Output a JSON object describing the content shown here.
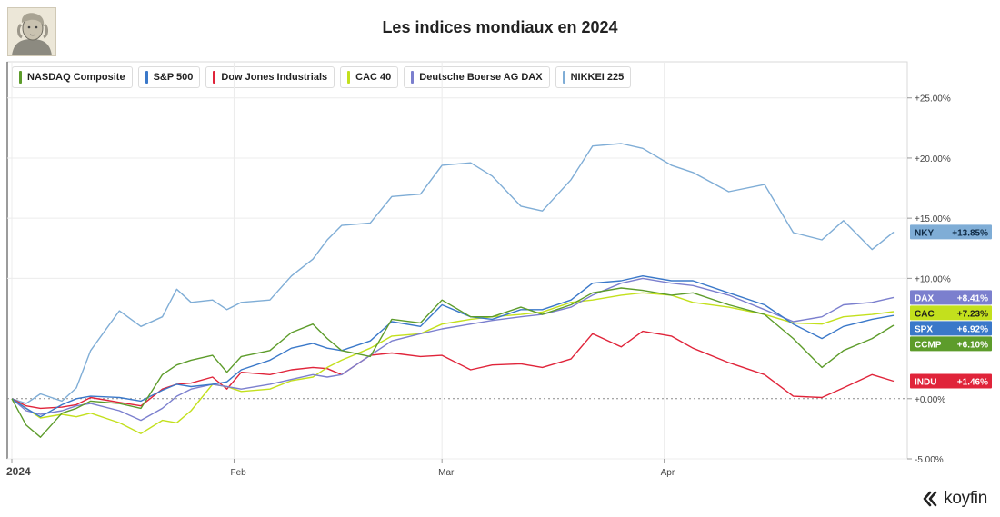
{
  "header": {
    "title": "Les indices mondiaux en 2024",
    "avatar_icon": "portrait-engraving-icon"
  },
  "brand": {
    "name": "koyfin",
    "icon": "koyfin-logo-icon"
  },
  "chart_data": {
    "type": "line",
    "title": "Les indices mondiaux en 2024",
    "ylim": [
      -5,
      28
    ],
    "grid": true,
    "legend": "top-left",
    "y_ticks": [
      {
        "value": 25,
        "label": "+25.00%"
      },
      {
        "value": 20,
        "label": "+20.00%"
      },
      {
        "value": 15,
        "label": "+15.00%"
      },
      {
        "value": 10,
        "label": "+10.00%"
      },
      {
        "value": 0,
        "label": "+0.00%"
      },
      {
        "value": -5,
        "label": "-5.00%"
      }
    ],
    "x_ticks": [
      {
        "date": "2024-01-01",
        "label": "2024"
      },
      {
        "date": "2024-02-01",
        "label": "Feb"
      },
      {
        "date": "2024-03-01",
        "label": "Mar"
      },
      {
        "date": "2024-04-01",
        "label": "Apr"
      }
    ],
    "series": [
      {
        "name": "NASDAQ Composite",
        "ticker": "CCMP",
        "last": 6.1,
        "last_label": "+6.10%",
        "color": "#5d9c2b",
        "points": [
          [
            "2024-01-01",
            0
          ],
          [
            "2024-01-03",
            -2.2
          ],
          [
            "2024-01-05",
            -3.2
          ],
          [
            "2024-01-08",
            -1.2
          ],
          [
            "2024-01-10",
            -0.8
          ],
          [
            "2024-01-12",
            -0.2
          ],
          [
            "2024-01-16",
            -0.4
          ],
          [
            "2024-01-19",
            -0.8
          ],
          [
            "2024-01-22",
            2.0
          ],
          [
            "2024-01-24",
            2.8
          ],
          [
            "2024-01-26",
            3.2
          ],
          [
            "2024-01-29",
            3.6
          ],
          [
            "2024-01-31",
            2.2
          ],
          [
            "2024-02-02",
            3.5
          ],
          [
            "2024-02-06",
            4.0
          ],
          [
            "2024-02-09",
            5.5
          ],
          [
            "2024-02-12",
            6.2
          ],
          [
            "2024-02-14",
            5.0
          ],
          [
            "2024-02-16",
            4.0
          ],
          [
            "2024-02-20",
            3.5
          ],
          [
            "2024-02-23",
            6.6
          ],
          [
            "2024-02-27",
            6.3
          ],
          [
            "2024-03-01",
            8.2
          ],
          [
            "2024-03-05",
            6.8
          ],
          [
            "2024-03-08",
            6.8
          ],
          [
            "2024-03-12",
            7.6
          ],
          [
            "2024-03-15",
            7.0
          ],
          [
            "2024-03-19",
            7.8
          ],
          [
            "2024-03-22",
            8.8
          ],
          [
            "2024-03-26",
            9.2
          ],
          [
            "2024-03-29",
            9.0
          ],
          [
            "2024-04-02",
            8.6
          ],
          [
            "2024-04-05",
            8.8
          ],
          [
            "2024-04-10",
            7.8
          ],
          [
            "2024-04-15",
            7.0
          ],
          [
            "2024-04-19",
            5.0
          ],
          [
            "2024-04-23",
            2.6
          ],
          [
            "2024-04-26",
            4.0
          ],
          [
            "2024-04-30",
            5.0
          ],
          [
            "2024-05-03",
            6.1
          ]
        ]
      },
      {
        "name": "S&P 500",
        "ticker": "SPX",
        "last": 6.92,
        "last_label": "+6.92%",
        "color": "#3a78c9",
        "points": [
          [
            "2024-01-01",
            0
          ],
          [
            "2024-01-03",
            -0.8
          ],
          [
            "2024-01-05",
            -1.5
          ],
          [
            "2024-01-08",
            -0.5
          ],
          [
            "2024-01-10",
            0.0
          ],
          [
            "2024-01-12",
            0.2
          ],
          [
            "2024-01-16",
            0.1
          ],
          [
            "2024-01-19",
            -0.2
          ],
          [
            "2024-01-22",
            0.7
          ],
          [
            "2024-01-24",
            1.2
          ],
          [
            "2024-01-26",
            1.0
          ],
          [
            "2024-01-29",
            1.2
          ],
          [
            "2024-01-31",
            1.4
          ],
          [
            "2024-02-02",
            2.4
          ],
          [
            "2024-02-06",
            3.2
          ],
          [
            "2024-02-09",
            4.2
          ],
          [
            "2024-02-12",
            4.6
          ],
          [
            "2024-02-14",
            4.2
          ],
          [
            "2024-02-16",
            4.0
          ],
          [
            "2024-02-20",
            4.8
          ],
          [
            "2024-02-23",
            6.4
          ],
          [
            "2024-02-27",
            6.0
          ],
          [
            "2024-03-01",
            7.8
          ],
          [
            "2024-03-05",
            6.8
          ],
          [
            "2024-03-08",
            6.6
          ],
          [
            "2024-03-12",
            7.4
          ],
          [
            "2024-03-15",
            7.4
          ],
          [
            "2024-03-19",
            8.2
          ],
          [
            "2024-03-22",
            9.6
          ],
          [
            "2024-03-26",
            9.8
          ],
          [
            "2024-03-29",
            10.2
          ],
          [
            "2024-04-02",
            9.8
          ],
          [
            "2024-04-05",
            9.8
          ],
          [
            "2024-04-10",
            8.8
          ],
          [
            "2024-04-15",
            7.8
          ],
          [
            "2024-04-19",
            6.2
          ],
          [
            "2024-04-23",
            5.0
          ],
          [
            "2024-04-26",
            6.0
          ],
          [
            "2024-04-30",
            6.6
          ],
          [
            "2024-05-03",
            6.92
          ]
        ]
      },
      {
        "name": "Dow Jones Industrials",
        "ticker": "INDU",
        "last": 1.46,
        "last_label": "+1.46%",
        "color": "#e0243a",
        "points": [
          [
            "2024-01-01",
            0
          ],
          [
            "2024-01-03",
            -0.6
          ],
          [
            "2024-01-05",
            -0.8
          ],
          [
            "2024-01-08",
            -0.7
          ],
          [
            "2024-01-10",
            -0.5
          ],
          [
            "2024-01-12",
            0.1
          ],
          [
            "2024-01-16",
            -0.3
          ],
          [
            "2024-01-19",
            -0.6
          ],
          [
            "2024-01-22",
            0.8
          ],
          [
            "2024-01-24",
            1.2
          ],
          [
            "2024-01-26",
            1.3
          ],
          [
            "2024-01-29",
            1.8
          ],
          [
            "2024-01-31",
            0.8
          ],
          [
            "2024-02-02",
            2.2
          ],
          [
            "2024-02-06",
            2.0
          ],
          [
            "2024-02-09",
            2.4
          ],
          [
            "2024-02-12",
            2.6
          ],
          [
            "2024-02-14",
            2.5
          ],
          [
            "2024-02-16",
            2.0
          ],
          [
            "2024-02-20",
            3.6
          ],
          [
            "2024-02-23",
            3.8
          ],
          [
            "2024-02-27",
            3.5
          ],
          [
            "2024-03-01",
            3.6
          ],
          [
            "2024-03-05",
            2.4
          ],
          [
            "2024-03-08",
            2.8
          ],
          [
            "2024-03-12",
            2.9
          ],
          [
            "2024-03-15",
            2.6
          ],
          [
            "2024-03-19",
            3.3
          ],
          [
            "2024-03-22",
            5.4
          ],
          [
            "2024-03-26",
            4.3
          ],
          [
            "2024-03-29",
            5.6
          ],
          [
            "2024-04-02",
            5.2
          ],
          [
            "2024-04-05",
            4.2
          ],
          [
            "2024-04-10",
            3.0
          ],
          [
            "2024-04-15",
            2.0
          ],
          [
            "2024-04-19",
            0.2
          ],
          [
            "2024-04-23",
            0.1
          ],
          [
            "2024-04-26",
            0.9
          ],
          [
            "2024-04-30",
            2.0
          ],
          [
            "2024-05-03",
            1.46
          ]
        ]
      },
      {
        "name": "CAC 40",
        "ticker": "CAC",
        "last": 7.23,
        "last_label": "+7.23%",
        "color": "#c3e01d",
        "points": [
          [
            "2024-01-01",
            0
          ],
          [
            "2024-01-03",
            -0.8
          ],
          [
            "2024-01-05",
            -1.6
          ],
          [
            "2024-01-08",
            -1.3
          ],
          [
            "2024-01-10",
            -1.5
          ],
          [
            "2024-01-12",
            -1.2
          ],
          [
            "2024-01-16",
            -2.0
          ],
          [
            "2024-01-19",
            -2.9
          ],
          [
            "2024-01-22",
            -1.8
          ],
          [
            "2024-01-24",
            -2.0
          ],
          [
            "2024-01-26",
            -1.0
          ],
          [
            "2024-01-29",
            1.2
          ],
          [
            "2024-01-31",
            1.0
          ],
          [
            "2024-02-02",
            0.6
          ],
          [
            "2024-02-06",
            0.8
          ],
          [
            "2024-02-09",
            1.5
          ],
          [
            "2024-02-12",
            1.8
          ],
          [
            "2024-02-14",
            2.6
          ],
          [
            "2024-02-16",
            3.2
          ],
          [
            "2024-02-20",
            4.2
          ],
          [
            "2024-02-23",
            5.2
          ],
          [
            "2024-02-27",
            5.4
          ],
          [
            "2024-03-01",
            6.2
          ],
          [
            "2024-03-05",
            6.6
          ],
          [
            "2024-03-08",
            6.8
          ],
          [
            "2024-03-12",
            7.0
          ],
          [
            "2024-03-15",
            7.2
          ],
          [
            "2024-03-19",
            8.0
          ],
          [
            "2024-03-22",
            8.2
          ],
          [
            "2024-03-26",
            8.6
          ],
          [
            "2024-03-29",
            8.8
          ],
          [
            "2024-04-02",
            8.6
          ],
          [
            "2024-04-05",
            8.0
          ],
          [
            "2024-04-10",
            7.6
          ],
          [
            "2024-04-15",
            7.0
          ],
          [
            "2024-04-19",
            6.3
          ],
          [
            "2024-04-23",
            6.2
          ],
          [
            "2024-04-26",
            6.8
          ],
          [
            "2024-04-30",
            7.0
          ],
          [
            "2024-05-03",
            7.23
          ]
        ]
      },
      {
        "name": "Deutsche Boerse AG DAX",
        "ticker": "DAX",
        "last": 8.41,
        "last_label": "+8.41%",
        "color": "#7b7fce",
        "points": [
          [
            "2024-01-01",
            0
          ],
          [
            "2024-01-03",
            -1.0
          ],
          [
            "2024-01-05",
            -1.3
          ],
          [
            "2024-01-08",
            -1.0
          ],
          [
            "2024-01-10",
            -0.6
          ],
          [
            "2024-01-12",
            -0.4
          ],
          [
            "2024-01-16",
            -1.0
          ],
          [
            "2024-01-19",
            -1.8
          ],
          [
            "2024-01-22",
            -0.8
          ],
          [
            "2024-01-24",
            0.2
          ],
          [
            "2024-01-26",
            0.8
          ],
          [
            "2024-01-29",
            1.2
          ],
          [
            "2024-01-31",
            1.0
          ],
          [
            "2024-02-02",
            0.8
          ],
          [
            "2024-02-06",
            1.2
          ],
          [
            "2024-02-09",
            1.6
          ],
          [
            "2024-02-12",
            2.0
          ],
          [
            "2024-02-14",
            1.8
          ],
          [
            "2024-02-16",
            2.0
          ],
          [
            "2024-02-20",
            3.6
          ],
          [
            "2024-02-23",
            4.8
          ],
          [
            "2024-02-27",
            5.4
          ],
          [
            "2024-03-01",
            5.8
          ],
          [
            "2024-03-05",
            6.2
          ],
          [
            "2024-03-08",
            6.5
          ],
          [
            "2024-03-12",
            6.8
          ],
          [
            "2024-03-15",
            7.0
          ],
          [
            "2024-03-19",
            7.6
          ],
          [
            "2024-03-22",
            8.6
          ],
          [
            "2024-03-26",
            9.6
          ],
          [
            "2024-03-29",
            10.0
          ],
          [
            "2024-04-02",
            9.6
          ],
          [
            "2024-04-05",
            9.4
          ],
          [
            "2024-04-10",
            8.6
          ],
          [
            "2024-04-15",
            7.4
          ],
          [
            "2024-04-19",
            6.4
          ],
          [
            "2024-04-23",
            6.8
          ],
          [
            "2024-04-26",
            7.8
          ],
          [
            "2024-04-30",
            8.0
          ],
          [
            "2024-05-03",
            8.41
          ]
        ]
      },
      {
        "name": "NIKKEI 225",
        "ticker": "NKY",
        "last": 13.85,
        "last_label": "+13.85%",
        "color": "#7fadd6",
        "points": [
          [
            "2024-01-01",
            0
          ],
          [
            "2024-01-03",
            -0.4
          ],
          [
            "2024-01-05",
            0.4
          ],
          [
            "2024-01-08",
            -0.2
          ],
          [
            "2024-01-10",
            0.9
          ],
          [
            "2024-01-12",
            4.0
          ],
          [
            "2024-01-16",
            7.3
          ],
          [
            "2024-01-19",
            6.0
          ],
          [
            "2024-01-22",
            6.8
          ],
          [
            "2024-01-24",
            9.1
          ],
          [
            "2024-01-26",
            8.0
          ],
          [
            "2024-01-29",
            8.2
          ],
          [
            "2024-01-31",
            7.4
          ],
          [
            "2024-02-02",
            8.0
          ],
          [
            "2024-02-06",
            8.2
          ],
          [
            "2024-02-09",
            10.2
          ],
          [
            "2024-02-12",
            11.6
          ],
          [
            "2024-02-14",
            13.2
          ],
          [
            "2024-02-16",
            14.4
          ],
          [
            "2024-02-20",
            14.6
          ],
          [
            "2024-02-23",
            16.8
          ],
          [
            "2024-02-27",
            17.0
          ],
          [
            "2024-03-01",
            19.4
          ],
          [
            "2024-03-05",
            19.6
          ],
          [
            "2024-03-08",
            18.5
          ],
          [
            "2024-03-12",
            16.0
          ],
          [
            "2024-03-15",
            15.6
          ],
          [
            "2024-03-19",
            18.2
          ],
          [
            "2024-03-22",
            21.0
          ],
          [
            "2024-03-26",
            21.2
          ],
          [
            "2024-03-29",
            20.8
          ],
          [
            "2024-04-02",
            19.4
          ],
          [
            "2024-04-05",
            18.8
          ],
          [
            "2024-04-10",
            17.2
          ],
          [
            "2024-04-15",
            17.8
          ],
          [
            "2024-04-19",
            13.8
          ],
          [
            "2024-04-23",
            13.2
          ],
          [
            "2024-04-26",
            14.8
          ],
          [
            "2024-04-30",
            12.4
          ],
          [
            "2024-05-03",
            13.85
          ]
        ]
      }
    ]
  }
}
